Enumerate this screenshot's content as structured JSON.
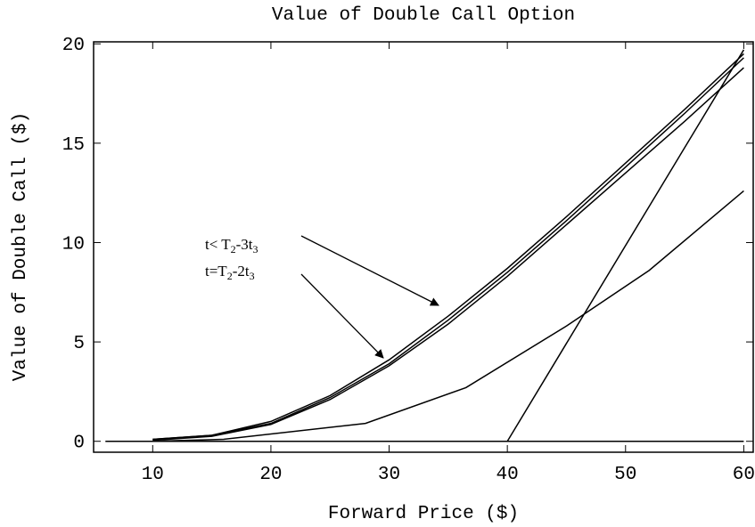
{
  "chart_data": {
    "type": "line",
    "title": "Value of Double Call Option",
    "x_label": "Forward Price ($)",
    "y_label": "Value of Double Call ($)",
    "xlim": [
      5,
      60.8
    ],
    "ylim": [
      -0.55,
      20.1
    ],
    "xticks": [
      10,
      20,
      30,
      40,
      50,
      60
    ],
    "yticks": [
      0,
      5,
      10,
      15,
      20
    ],
    "series": [
      {
        "color": "#000000",
        "x": [
          6,
          60
        ],
        "values": [
          0,
          0
        ]
      },
      {
        "color": "#000000",
        "x": [
          40,
          60
        ],
        "values": [
          0,
          19.7
        ]
      },
      {
        "color": "#000000",
        "x": [
          10,
          16,
          28,
          36.5,
          45,
          52,
          60
        ],
        "values": [
          0,
          0.1,
          0.9,
          2.7,
          5.8,
          8.6,
          12.6
        ]
      },
      {
        "color": "#000000",
        "x": [
          10,
          15,
          20,
          25,
          30,
          35,
          40,
          45,
          50,
          55,
          60
        ],
        "values": [
          0.1,
          0.3,
          1.0,
          2.3,
          4.1,
          6.3,
          8.7,
          11.3,
          14.0,
          16.7,
          19.5
        ]
      },
      {
        "color": "#000000",
        "x": [
          10,
          15,
          20,
          25,
          30,
          35,
          40,
          45,
          50,
          55,
          60
        ],
        "values": [
          0.1,
          0.3,
          0.9,
          2.2,
          3.9,
          6.1,
          8.5,
          11.1,
          13.8,
          16.5,
          19.3
        ]
      },
      {
        "color": "#000000",
        "x": [
          10,
          15,
          20,
          25,
          30,
          35,
          40,
          45,
          50,
          55,
          60
        ],
        "values": [
          0.05,
          0.25,
          0.85,
          2.1,
          3.8,
          5.9,
          8.3,
          10.9,
          13.5,
          16.1,
          18.8
        ]
      }
    ],
    "annotations": [
      {
        "parts": [
          "t< T",
          "2",
          "-3t",
          "3"
        ]
      },
      {
        "parts": [
          "t=T",
          "2",
          "-2t",
          "3"
        ]
      }
    ]
  }
}
